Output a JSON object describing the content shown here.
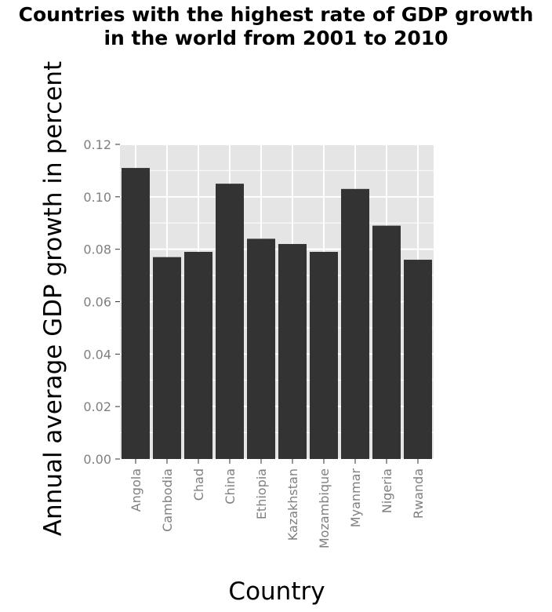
{
  "chart_data": {
    "type": "bar",
    "title_lines": [
      "Countries with the highest rate of GDP growth",
      "in the world from 2001 to 2010"
    ],
    "xlabel": "Country",
    "ylabel": "Annual average GDP growth in percent",
    "categories": [
      "Angola",
      "Cambodia",
      "Chad",
      "China",
      "Ethiopia",
      "Kazakhstan",
      "Mozambique",
      "Myanmar",
      "Nigeria",
      "Rwanda"
    ],
    "values": [
      0.111,
      0.077,
      0.079,
      0.105,
      0.084,
      0.082,
      0.079,
      0.103,
      0.089,
      0.076
    ],
    "ylim": [
      0,
      0.12
    ],
    "yticks": [
      "0.00",
      "0.02",
      "0.04",
      "0.06",
      "0.08",
      "0.10",
      "0.12"
    ],
    "grid": true,
    "colors": {
      "bar": "#333333",
      "panel": "#e5e5e5",
      "grid": "#ffffff"
    }
  }
}
